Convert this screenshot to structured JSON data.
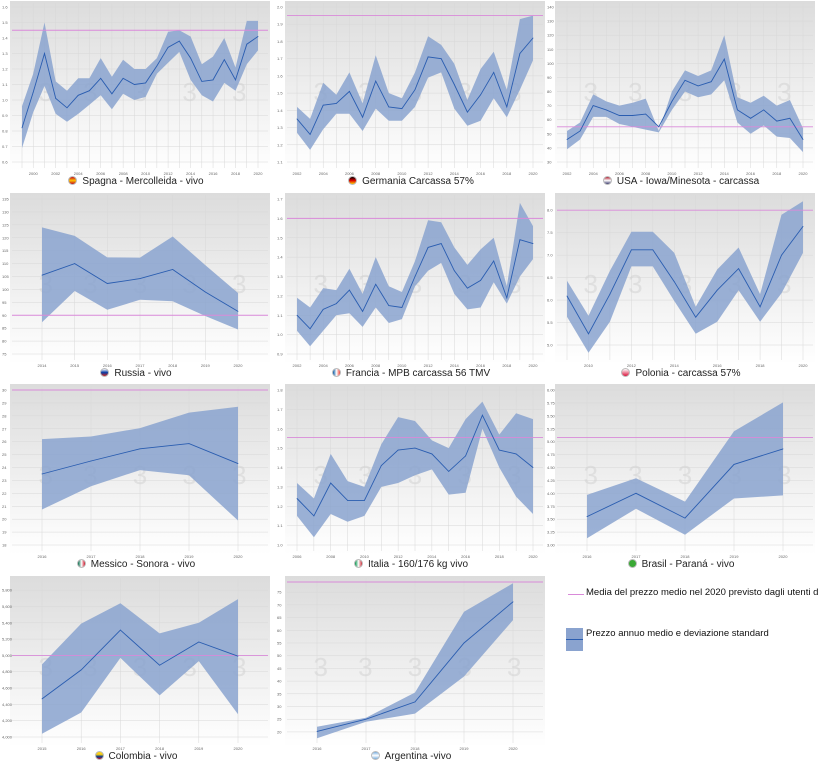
{
  "colors": {
    "band": "#8aa3cf",
    "line": "#2a5db0",
    "reference": "#d98ad9",
    "grid": "#d8d8d8"
  },
  "watermark": "3",
  "legend": {
    "reference_label": "Media del prezzo medio nel 2020 previsto dagli utenti d",
    "band_label": "Prezzo annuo medio e deviazione standard"
  },
  "chart_data": [
    {
      "type": "area",
      "title": "Spagna - Mercolleida - vivo",
      "flag": [
        "#c60b1e",
        "#ffc400",
        "#c60b1e"
      ],
      "flag_dir": "to bottom",
      "x": [
        1999,
        2000,
        2001,
        2002,
        2003,
        2004,
        2005,
        2006,
        2007,
        2008,
        2009,
        2010,
        2011,
        2012,
        2013,
        2014,
        2015,
        2016,
        2017,
        2018,
        2019,
        2020
      ],
      "mean": [
        0.82,
        1.05,
        1.3,
        1.01,
        0.95,
        1.03,
        1.06,
        1.14,
        1.04,
        1.14,
        1.1,
        1.11,
        1.22,
        1.34,
        1.38,
        1.27,
        1.12,
        1.13,
        1.26,
        1.13,
        1.36,
        1.41
      ],
      "upper": [
        0.96,
        1.17,
        1.5,
        1.12,
        1.06,
        1.14,
        1.14,
        1.27,
        1.15,
        1.26,
        1.2,
        1.2,
        1.27,
        1.44,
        1.45,
        1.41,
        1.23,
        1.28,
        1.4,
        1.21,
        1.51,
        1.51
      ],
      "lower": [
        0.69,
        0.92,
        1.09,
        0.91,
        0.86,
        0.91,
        0.97,
        1.03,
        0.94,
        1.04,
        1.0,
        1.02,
        1.17,
        1.24,
        1.31,
        1.13,
        1.03,
        0.99,
        1.11,
        1.06,
        1.23,
        1.32
      ],
      "reference": 1.45,
      "ylim": [
        0.6,
        1.6
      ],
      "yticks": [
        "0.6",
        "0.7",
        "0.8",
        "0.9",
        "1.0",
        "1.1",
        "1.2",
        "1.3",
        "1.4",
        "1.5",
        "1.6"
      ],
      "xticks": [
        2000,
        2002,
        2004,
        2006,
        2008,
        2010,
        2012,
        2014,
        2016,
        2018,
        2020
      ]
    },
    {
      "type": "area",
      "title": "Germania Carcassa 57%",
      "flag": [
        "#000000",
        "#dd0000",
        "#ffce00"
      ],
      "flag_dir": "to bottom",
      "x": [
        2002,
        2003,
        2004,
        2005,
        2006,
        2007,
        2008,
        2009,
        2010,
        2011,
        2012,
        2013,
        2014,
        2015,
        2016,
        2017,
        2018,
        2019,
        2020
      ],
      "mean": [
        1.35,
        1.26,
        1.43,
        1.44,
        1.51,
        1.36,
        1.57,
        1.42,
        1.41,
        1.52,
        1.71,
        1.7,
        1.55,
        1.39,
        1.49,
        1.62,
        1.42,
        1.73,
        1.82
      ],
      "upper": [
        1.42,
        1.35,
        1.56,
        1.49,
        1.62,
        1.44,
        1.72,
        1.5,
        1.47,
        1.62,
        1.83,
        1.78,
        1.67,
        1.46,
        1.64,
        1.74,
        1.52,
        1.93,
        1.95
      ],
      "lower": [
        1.27,
        1.17,
        1.29,
        1.38,
        1.38,
        1.28,
        1.41,
        1.34,
        1.34,
        1.42,
        1.59,
        1.62,
        1.41,
        1.31,
        1.34,
        1.47,
        1.36,
        1.52,
        1.69
      ],
      "reference": 1.95,
      "ylim": [
        1.1,
        2.0
      ],
      "yticks": [
        "1.1",
        "1.2",
        "1.3",
        "1.4",
        "1.5",
        "1.6",
        "1.7",
        "1.8",
        "1.9",
        "2.0"
      ],
      "xticks": [
        2002,
        2004,
        2006,
        2008,
        2010,
        2012,
        2014,
        2016,
        2018,
        2020
      ]
    },
    {
      "type": "area",
      "title": "USA - Iowa/Minesota - carcassa",
      "flag": [
        "#b22234",
        "#ffffff",
        "#3c3b6e"
      ],
      "flag_dir": "to bottom",
      "x": [
        2002,
        2003,
        2004,
        2005,
        2006,
        2007,
        2008,
        2009,
        2010,
        2011,
        2012,
        2013,
        2014,
        2015,
        2016,
        2017,
        2018,
        2019,
        2020
      ],
      "mean": [
        46,
        52,
        70,
        67,
        63,
        63,
        64,
        55,
        73,
        88,
        84,
        87,
        103,
        67,
        61,
        67,
        59,
        61,
        46
      ],
      "upper": [
        52,
        58,
        78,
        73,
        70,
        72,
        75,
        52,
        80,
        95,
        91,
        95,
        120,
        76,
        72,
        77,
        70,
        74,
        54
      ],
      "lower": [
        39,
        46,
        62,
        62,
        57,
        55,
        53,
        51,
        67,
        80,
        76,
        78,
        88,
        58,
        50,
        56,
        48,
        47,
        37
      ],
      "reference": 55,
      "ylim": [
        30,
        140
      ],
      "yticks": [
        "30",
        "40",
        "50",
        "60",
        "70",
        "80",
        "90",
        "100",
        "110",
        "120",
        "130",
        "140"
      ],
      "xticks": [
        2002,
        2004,
        2006,
        2008,
        2010,
        2012,
        2014,
        2016,
        2018,
        2020
      ]
    },
    {
      "type": "area",
      "title": "Russia - vivo",
      "flag": [
        "#ffffff",
        "#0039a6",
        "#d52b1e"
      ],
      "flag_dir": "to bottom",
      "x": [
        2014,
        2015,
        2016,
        2017,
        2018,
        2019,
        2020
      ],
      "mean": [
        105.5,
        110,
        102.3,
        104.2,
        107.7,
        99,
        91.5
      ],
      "upper": [
        124,
        120.7,
        112.4,
        112.3,
        120.5,
        109.4,
        98.6
      ],
      "lower": [
        87.3,
        99.4,
        92.1,
        96,
        95.4,
        89.7,
        84.5
      ],
      "reference": 90,
      "ylim": [
        75,
        135
      ],
      "yticks": [
        "75",
        "80",
        "85",
        "90",
        "95",
        "100",
        "105",
        "110",
        "115",
        "120",
        "125",
        "130",
        "135"
      ],
      "xticks": [
        2014,
        2015,
        2016,
        2017,
        2018,
        2019,
        2020
      ]
    },
    {
      "type": "area",
      "title": "Francia - MPB carcassa 56 TMV",
      "flag": [
        "#0055a4",
        "#ffffff",
        "#ef4135"
      ],
      "flag_dir": "to right",
      "x": [
        2002,
        2003,
        2004,
        2005,
        2006,
        2007,
        2008,
        2009,
        2010,
        2011,
        2012,
        2013,
        2014,
        2015,
        2016,
        2017,
        2018,
        2019,
        2020
      ],
      "mean": [
        1.1,
        1.03,
        1.13,
        1.16,
        1.23,
        1.12,
        1.26,
        1.15,
        1.14,
        1.3,
        1.45,
        1.47,
        1.33,
        1.24,
        1.28,
        1.38,
        1.19,
        1.49,
        1.47
      ],
      "upper": [
        1.19,
        1.14,
        1.24,
        1.23,
        1.34,
        1.21,
        1.4,
        1.25,
        1.22,
        1.38,
        1.59,
        1.58,
        1.45,
        1.36,
        1.44,
        1.5,
        1.25,
        1.68,
        1.56
      ],
      "lower": [
        1.02,
        0.94,
        1.02,
        1.1,
        1.11,
        1.04,
        1.14,
        1.06,
        1.08,
        1.25,
        1.33,
        1.37,
        1.21,
        1.13,
        1.14,
        1.27,
        1.16,
        1.3,
        1.39
      ],
      "reference": 1.6,
      "ylim": [
        0.9,
        1.7
      ],
      "yticks": [
        "0.9",
        "1.0",
        "1.1",
        "1.2",
        "1.3",
        "1.4",
        "1.5",
        "1.6",
        "1.7"
      ],
      "xticks": [
        2002,
        2004,
        2006,
        2008,
        2010,
        2012,
        2014,
        2016,
        2018,
        2020
      ]
    },
    {
      "type": "area",
      "title": "Polonia - carcassa 57%",
      "flag": [
        "#ffffff",
        "#dc143c"
      ],
      "flag_dir": "to bottom",
      "x": [
        2009,
        2010,
        2011,
        2012,
        2013,
        2014,
        2015,
        2016,
        2017,
        2018,
        2019,
        2020
      ],
      "mean": [
        6.09,
        5.25,
        6.13,
        7.12,
        7.12,
        6.41,
        5.62,
        6.22,
        6.7,
        5.85,
        7.0,
        7.64
      ],
      "upper": [
        6.43,
        5.65,
        6.65,
        7.52,
        7.52,
        7.05,
        5.85,
        6.68,
        7.17,
        6.13,
        7.9,
        8.2
      ],
      "lower": [
        5.63,
        4.83,
        5.52,
        6.75,
        6.75,
        5.98,
        5.25,
        5.52,
        6.22,
        5.52,
        6.15,
        7.05
      ],
      "reference": 8.0,
      "ylim": [
        4.8,
        8.25
      ],
      "yticks": [
        "5.0",
        "5.5",
        "6.0",
        "6.5",
        "7.0",
        "7.5",
        "8.0"
      ],
      "xticks": [
        2010,
        2012,
        2014,
        2016,
        2018,
        2020
      ]
    },
    {
      "type": "area",
      "title": "Messico - Sonora - vivo",
      "flag": [
        "#006847",
        "#ffffff",
        "#ce1126"
      ],
      "flag_dir": "to right",
      "x": [
        2016,
        2017,
        2018,
        2019,
        2020
      ],
      "mean": [
        23.5,
        24.5,
        25.45,
        25.85,
        24.3
      ],
      "upper": [
        26.2,
        26.4,
        27.05,
        28.25,
        28.7
      ],
      "lower": [
        20.75,
        22.55,
        23.8,
        23.4,
        19.9
      ],
      "reference": 30,
      "ylim": [
        18,
        30
      ],
      "yticks": [
        "18",
        "19",
        "20",
        "21",
        "22",
        "23",
        "24",
        "25",
        "26",
        "27",
        "28",
        "29",
        "30"
      ],
      "xticks": [
        2016,
        2017,
        2018,
        2019,
        2020
      ]
    },
    {
      "type": "area",
      "title": "Italia - 160/176 kg vivo",
      "flag": [
        "#009246",
        "#ffffff",
        "#ce2b37"
      ],
      "flag_dir": "to right",
      "x": [
        2006,
        2007,
        2008,
        2009,
        2010,
        2011,
        2012,
        2013,
        2014,
        2015,
        2016,
        2017,
        2018,
        2019,
        2020
      ],
      "mean": [
        1.24,
        1.15,
        1.32,
        1.23,
        1.23,
        1.41,
        1.49,
        1.5,
        1.47,
        1.38,
        1.46,
        1.67,
        1.49,
        1.47,
        1.4
      ],
      "upper": [
        1.32,
        1.24,
        1.47,
        1.33,
        1.3,
        1.52,
        1.66,
        1.64,
        1.54,
        1.5,
        1.65,
        1.74,
        1.57,
        1.68,
        1.65
      ],
      "lower": [
        1.15,
        1.04,
        1.16,
        1.12,
        1.15,
        1.3,
        1.32,
        1.36,
        1.39,
        1.26,
        1.27,
        1.6,
        1.4,
        1.25,
        1.16
      ],
      "reference": 1.555,
      "ylim": [
        1.0,
        1.8
      ],
      "yticks": [
        "1.0",
        "1.1",
        "1.2",
        "1.3",
        "1.4",
        "1.5",
        "1.6",
        "1.7",
        "1.8"
      ],
      "xticks": [
        2006,
        2008,
        2010,
        2012,
        2014,
        2016,
        2018,
        2020
      ]
    },
    {
      "type": "area",
      "title": "Brasil - Paraná - vivo",
      "flag": [
        "#3aa935",
        "#3aa935"
      ],
      "flag_dir": "to bottom",
      "x": [
        2016,
        2017,
        2018,
        2019,
        2020
      ],
      "mean": [
        3.55,
        4.0,
        3.52,
        4.56,
        4.86
      ],
      "upper": [
        3.97,
        4.29,
        3.84,
        5.2,
        5.76
      ],
      "lower": [
        3.13,
        3.7,
        3.2,
        3.9,
        3.96
      ],
      "reference": 5.08,
      "ylim": [
        3.0,
        6.0
      ],
      "yticks": [
        "3.00",
        "3.25",
        "3.50",
        "3.75",
        "4.00",
        "4.25",
        "4.50",
        "4.75",
        "5.00",
        "5.25",
        "5.50",
        "5.75",
        "6.00"
      ],
      "xticks": [
        2016,
        2017,
        2018,
        2019,
        2020
      ]
    },
    {
      "type": "area",
      "title": "Colombia - vivo",
      "flag": [
        "#fcd116",
        "#fcd116",
        "#003893",
        "#ce1126"
      ],
      "flag_dir": "to bottom",
      "x": [
        2015,
        2016,
        2017,
        2018,
        2019,
        2020
      ],
      "mean": [
        4467,
        4822,
        5311,
        4880,
        5164,
        4991
      ],
      "upper": [
        4890,
        5390,
        5640,
        5270,
        5400,
        5690
      ],
      "lower": [
        4040,
        4300,
        4970,
        4510,
        4930,
        4280
      ],
      "reference": 5000,
      "ylim": [
        4000,
        5900
      ],
      "yticks": [
        "4,000",
        "4,200",
        "4,400",
        "4,600",
        "4,800",
        "5,000",
        "5,200",
        "5,400",
        "5,600",
        "5,800"
      ],
      "xticks": [
        2015,
        2016,
        2017,
        2018,
        2019,
        2020
      ]
    },
    {
      "type": "area",
      "title": "Argentina -vivo",
      "flag": [
        "#74acdf",
        "#ffffff",
        "#74acdf"
      ],
      "flag_dir": "to bottom",
      "x": [
        2016,
        2017,
        2018,
        2019,
        2020
      ],
      "mean": [
        20.2,
        25,
        31.8,
        55,
        71.2
      ],
      "upper": [
        22,
        25.6,
        35.5,
        67.3,
        78.5
      ],
      "lower": [
        17.5,
        24,
        27.2,
        41.8,
        64
      ],
      "reference": 79,
      "ylim": [
        18,
        79
      ],
      "yticks": [
        "20",
        "25",
        "30",
        "35",
        "40",
        "45",
        "50",
        "55",
        "60",
        "65",
        "70",
        "75"
      ],
      "xticks": [
        2016,
        2017,
        2018,
        2019,
        2020
      ]
    }
  ]
}
